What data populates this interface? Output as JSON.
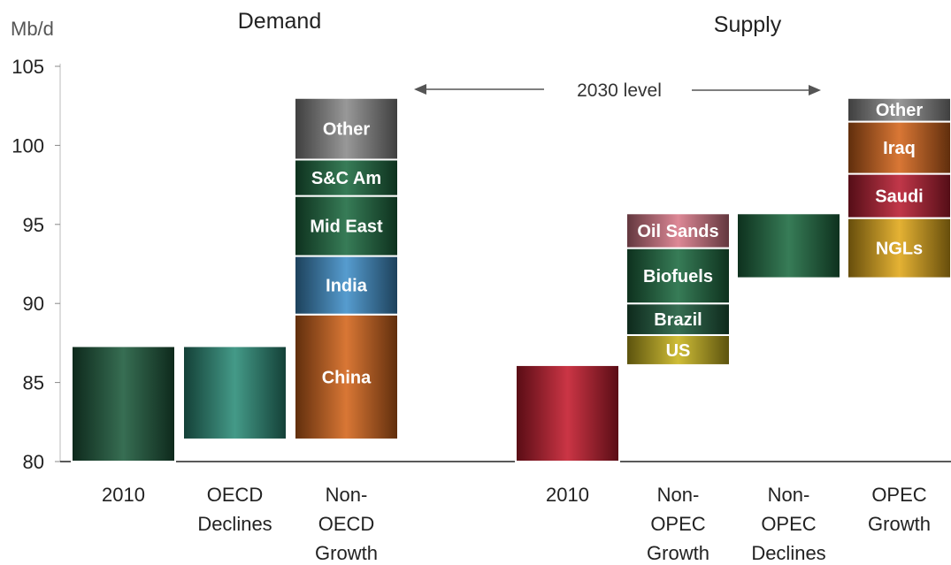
{
  "chart_data": {
    "type": "bar",
    "subtype": "waterfall",
    "ylabel": "Mb/d",
    "ylim": [
      80,
      105
    ],
    "yticks": [
      "80",
      "85",
      "90",
      "95",
      "100",
      "105"
    ],
    "groups": [
      {
        "name": "Demand",
        "bars": [
          0,
          1,
          2
        ]
      },
      {
        "name": "Supply",
        "bars": [
          3,
          4,
          5,
          6
        ]
      }
    ],
    "annotation": "2030 level",
    "bars": [
      {
        "label": [
          "2010"
        ],
        "segments": [
          {
            "label": "",
            "from": 80,
            "to": 87.3,
            "color": "#1c5a3c"
          }
        ]
      },
      {
        "label": [
          "OECD",
          "Declines"
        ],
        "segments": [
          {
            "label": "",
            "from": 81.4,
            "to": 87.3,
            "color": "#2a8c78"
          }
        ]
      },
      {
        "label": [
          "Non-",
          "OECD",
          "Growth"
        ],
        "segments": [
          {
            "label": "China",
            "from": 81.4,
            "to": 89.3,
            "color": "#d4641a"
          },
          {
            "label": "India",
            "from": 89.3,
            "to": 93.0,
            "color": "#3f8fc8"
          },
          {
            "label": "Mid East",
            "from": 93.0,
            "to": 96.8,
            "color": "#1c6a40"
          },
          {
            "label": "S&C Am",
            "from": 96.8,
            "to": 99.1,
            "color": "#1c6a40"
          },
          {
            "label": "Other",
            "from": 99.1,
            "to": 103.0,
            "color": "#8a8a8a"
          }
        ]
      },
      {
        "label": [
          "2010"
        ],
        "segments": [
          {
            "label": "",
            "from": 80,
            "to": 86.1,
            "color": "#c41a2c"
          }
        ]
      },
      {
        "label": [
          "Non-",
          "OPEC",
          "Growth"
        ],
        "segments": [
          {
            "label": "US",
            "from": 86.1,
            "to": 88.0,
            "color": "#c8b41c"
          },
          {
            "label": "Brazil",
            "from": 88.0,
            "to": 90.0,
            "color": "#1c5a3c"
          },
          {
            "label": "Biofuels",
            "from": 90.0,
            "to": 93.5,
            "color": "#1c6a40"
          },
          {
            "label": "Oil Sands",
            "from": 93.5,
            "to": 95.7,
            "color": "#d87888"
          }
        ]
      },
      {
        "label": [
          "Non-",
          "OPEC",
          "Declines"
        ],
        "segments": [
          {
            "label": "",
            "from": 91.6,
            "to": 95.7,
            "color": "#1c6a40"
          }
        ]
      },
      {
        "label": [
          "OPEC",
          "Growth"
        ],
        "segments": [
          {
            "label": "NGLs",
            "from": 91.6,
            "to": 95.4,
            "color": "#e0a818"
          },
          {
            "label": "Saudi",
            "from": 95.4,
            "to": 98.2,
            "color": "#b81c30"
          },
          {
            "label": "Iraq",
            "from": 98.2,
            "to": 101.5,
            "color": "#d4641a"
          },
          {
            "label": "Other",
            "from": 101.5,
            "to": 103.0,
            "color": "#8a8a8a"
          }
        ]
      }
    ]
  }
}
